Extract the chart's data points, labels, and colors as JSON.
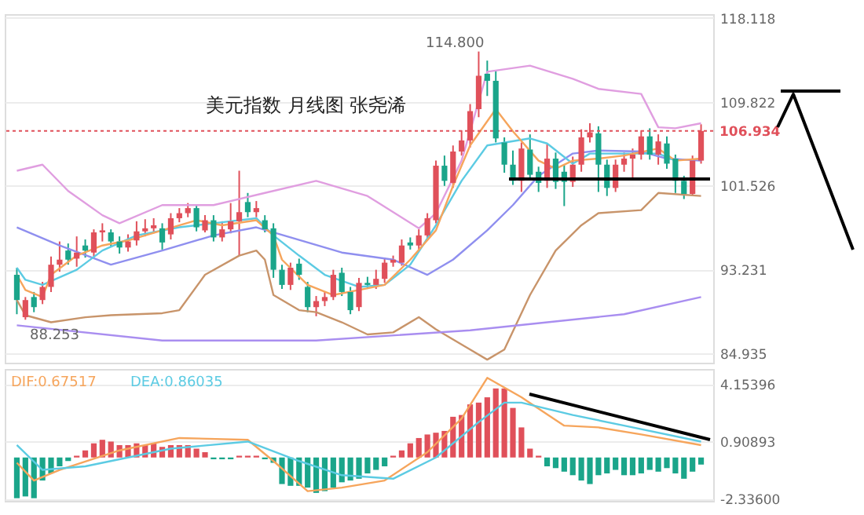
{
  "chart_data": [
    {
      "type": "candlestick",
      "title": "美元指数 月线图 张尧浠",
      "categories": [
        null,
        null,
        null,
        null,
        null,
        null,
        null,
        null,
        null,
        null,
        null,
        null,
        null,
        null,
        null,
        null,
        null,
        null,
        null,
        null,
        null,
        null,
        null,
        null,
        null,
        null,
        null,
        null,
        null,
        null,
        null,
        null,
        null,
        null,
        null,
        null,
        null,
        null,
        null,
        null,
        null,
        null,
        null,
        null,
        null,
        null,
        null,
        null,
        null,
        null,
        null,
        null,
        null,
        null,
        null,
        null,
        null,
        null,
        null,
        null,
        null,
        null,
        null,
        null,
        null,
        null,
        null,
        null,
        null,
        null,
        null,
        null,
        null,
        null,
        null,
        null,
        null,
        null,
        null,
        null,
        null
      ],
      "ohlc": [
        [
          92.7,
          93.4,
          88.8,
          90.2
        ],
        [
          88.5,
          90.5,
          88.253,
          90.2
        ],
        [
          90.5,
          91.0,
          89.0,
          89.5
        ],
        [
          90.2,
          92.0,
          89.8,
          91.5
        ],
        [
          91.5,
          94.5,
          91.0,
          93.7
        ],
        [
          93.7,
          96.0,
          93.0,
          94.2
        ],
        [
          95.1,
          95.8,
          93.7,
          94.2
        ],
        [
          94.3,
          96.5,
          93.5,
          94.9
        ],
        [
          95.6,
          96.2,
          94.4,
          95.1
        ],
        [
          94.9,
          97.2,
          94.5,
          96.9
        ],
        [
          96.9,
          97.8,
          96.0,
          97.1
        ],
        [
          96.9,
          97.2,
          95.5,
          96.0
        ],
        [
          96.0,
          96.5,
          94.8,
          95.4
        ],
        [
          95.4,
          96.7,
          95.0,
          96.0
        ],
        [
          96.1,
          98.0,
          95.6,
          97.0
        ],
        [
          97.0,
          98.2,
          96.5,
          97.3
        ],
        [
          97.3,
          98.3,
          96.8,
          97.6
        ],
        [
          97.3,
          97.8,
          95.2,
          95.9
        ],
        [
          96.7,
          98.8,
          96.2,
          98.3
        ],
        [
          98.3,
          99.3,
          97.9,
          98.8
        ],
        [
          98.8,
          99.8,
          98.4,
          99.3
        ],
        [
          99.3,
          99.6,
          97.0,
          97.4
        ],
        [
          97.1,
          98.6,
          96.9,
          98.1
        ],
        [
          98.1,
          98.6,
          96.0,
          96.4
        ],
        [
          96.4,
          98.0,
          96.0,
          97.2
        ],
        [
          97.2,
          99.8,
          96.8,
          98.0
        ],
        [
          98.0,
          103.0,
          94.6,
          98.9
        ],
        [
          99.9,
          100.8,
          98.4,
          98.9
        ],
        [
          98.9,
          100.0,
          98.4,
          99.3
        ],
        [
          98.1,
          98.6,
          96.9,
          97.2
        ],
        [
          97.3,
          97.8,
          92.4,
          93.2
        ],
        [
          93.2,
          93.7,
          91.3,
          91.7
        ],
        [
          91.7,
          93.9,
          91.2,
          93.4
        ],
        [
          93.8,
          94.3,
          92.2,
          92.7
        ],
        [
          91.5,
          92.0,
          89.0,
          89.5
        ],
        [
          89.5,
          90.6,
          88.6,
          90.1
        ],
        [
          90.1,
          91.0,
          89.6,
          90.5
        ],
        [
          90.5,
          93.2,
          90.2,
          92.7
        ],
        [
          92.9,
          93.4,
          90.6,
          91.0
        ],
        [
          91.0,
          91.5,
          88.8,
          89.2
        ],
        [
          89.5,
          92.4,
          89.1,
          91.9
        ],
        [
          91.9,
          92.5,
          91.3,
          91.7
        ],
        [
          91.7,
          93.2,
          91.3,
          92.3
        ],
        [
          92.3,
          94.4,
          91.9,
          93.9
        ],
        [
          93.9,
          94.6,
          93.5,
          94.2
        ],
        [
          93.9,
          96.2,
          93.6,
          95.6
        ],
        [
          95.9,
          96.4,
          95.2,
          95.6
        ],
        [
          95.6,
          97.2,
          95.2,
          96.6
        ],
        [
          96.6,
          98.8,
          96.2,
          98.3
        ],
        [
          98.1,
          104.0,
          97.8,
          103.5
        ],
        [
          103.5,
          104.5,
          101.5,
          102.0
        ],
        [
          101.8,
          105.5,
          101.3,
          104.9
        ],
        [
          104.9,
          107.0,
          104.5,
          106.0
        ],
        [
          106.0,
          109.6,
          105.3,
          108.9
        ],
        [
          109.1,
          114.8,
          108.3,
          112.4
        ],
        [
          112.6,
          113.9,
          110.4,
          111.9
        ],
        [
          111.9,
          112.9,
          105.8,
          106.2
        ],
        [
          105.8,
          106.3,
          102.8,
          103.6
        ],
        [
          103.6,
          105.0,
          101.6,
          102.0
        ],
        [
          102.0,
          105.8,
          100.9,
          105.2
        ],
        [
          105.1,
          106.6,
          102.1,
          102.6
        ],
        [
          102.9,
          103.4,
          100.9,
          101.8
        ],
        [
          102.0,
          105.6,
          101.3,
          104.2
        ],
        [
          104.2,
          104.8,
          101.2,
          101.9
        ],
        [
          102.9,
          103.6,
          99.5,
          101.9
        ],
        [
          101.9,
          104.4,
          101.4,
          103.6
        ],
        [
          103.6,
          107.1,
          102.9,
          106.3
        ],
        [
          106.3,
          107.7,
          105.8,
          106.8
        ],
        [
          106.7,
          107.4,
          100.9,
          103.6
        ],
        [
          103.6,
          104.1,
          100.5,
          101.3
        ],
        [
          101.3,
          104.1,
          100.9,
          103.6
        ],
        [
          103.6,
          104.8,
          102.9,
          104.2
        ],
        [
          104.2,
          105.2,
          102.3,
          104.6
        ],
        [
          104.6,
          107.0,
          104.1,
          106.4
        ],
        [
          106.4,
          107.2,
          104.1,
          104.6
        ],
        [
          104.6,
          106.6,
          103.6,
          105.9
        ],
        [
          105.7,
          106.4,
          103.2,
          103.7
        ],
        [
          104.2,
          104.6,
          100.8,
          102.0
        ],
        [
          102.0,
          102.5,
          100.2,
          100.7
        ],
        [
          100.7,
          104.5,
          100.5,
          104.0
        ],
        [
          104.0,
          107.6,
          103.7,
          106.934
        ]
      ],
      "colors": [
        "#1aa58a",
        "#e0505a",
        "#1aa58a",
        "#e0505a",
        "#e0505a",
        "#e0505a",
        "#1aa58a",
        "#e0505a",
        "#1aa58a",
        "#e0505a",
        "#e0505a",
        "#1aa58a",
        "#1aa58a",
        "#e0505a",
        "#e0505a",
        "#e0505a",
        "#e0505a",
        "#1aa58a",
        "#e0505a",
        "#e0505a",
        "#e0505a",
        "#1aa58a",
        "#e0505a",
        "#1aa58a",
        "#e0505a",
        "#e0505a",
        "#e0505a",
        "#1aa58a",
        "#e0505a",
        "#1aa58a",
        "#1aa58a",
        "#1aa58a",
        "#e0505a",
        "#1aa58a",
        "#1aa58a",
        "#e0505a",
        "#e0505a",
        "#e0505a",
        "#1aa58a",
        "#1aa58a",
        "#e0505a",
        "#1aa58a",
        "#e0505a",
        "#e0505a",
        "#e0505a",
        "#e0505a",
        "#1aa58a",
        "#e0505a",
        "#e0505a",
        "#e0505a",
        "#1aa58a",
        "#e0505a",
        "#e0505a",
        "#e0505a",
        "#e0505a",
        "#1aa58a",
        "#1aa58a",
        "#1aa58a",
        "#1aa58a",
        "#e0505a",
        "#1aa58a",
        "#1aa58a",
        "#e0505a",
        "#1aa58a",
        "#1aa58a",
        "#e0505a",
        "#e0505a",
        "#e0505a",
        "#1aa58a",
        "#1aa58a",
        "#e0505a",
        "#e0505a",
        "#e0505a",
        "#e0505a",
        "#1aa58a",
        "#e0505a",
        "#1aa58a",
        "#1aa58a",
        "#1aa58a",
        "#e0505a",
        "#e0505a"
      ],
      "series": [
        {
          "type": "line",
          "color": "#e09ee0",
          "values": [
            103.0,
            null,
            null,
            103.6,
            null,
            null,
            101.0,
            null,
            null,
            null,
            98.6,
            null,
            97.8,
            null,
            null,
            null,
            null,
            99.6,
            null,
            null,
            null,
            null,
            null,
            99.6,
            null,
            null,
            null,
            null,
            null,
            100.8,
            null,
            null,
            null,
            null,
            null,
            102.0,
            null,
            null,
            null,
            null,
            null,
            100.5,
            null,
            null,
            null,
            null,
            null,
            97.3,
            null,
            98.8,
            null,
            null,
            104.0,
            null,
            null,
            112.8,
            null,
            null,
            null,
            null,
            113.4,
            null,
            null,
            null,
            null,
            112.1,
            null,
            null,
            111.1,
            null,
            null,
            null,
            null,
            110.6,
            null,
            107.3,
            null,
            107.2,
            null,
            null,
            107.7
          ]
        },
        {
          "type": "line",
          "color": "#8f8fef",
          "values": [
            97.4,
            null,
            null,
            null,
            null,
            95.6,
            null,
            null,
            null,
            null,
            null,
            93.7,
            null,
            null,
            null,
            null,
            null,
            95.1,
            null,
            null,
            null,
            null,
            null,
            96.6,
            null,
            null,
            null,
            null,
            97.4,
            null,
            null,
            null,
            96.4,
            null,
            null,
            null,
            null,
            null,
            94.9,
            null,
            null,
            null,
            null,
            null,
            94.2,
            null,
            null,
            null,
            92.7,
            null,
            null,
            94.2,
            null,
            null,
            null,
            97.1,
            null,
            null,
            99.6,
            null,
            null,
            102.5,
            null,
            null,
            null,
            104.7,
            null,
            null,
            105.0,
            null,
            null,
            null,
            null,
            104.9,
            null,
            null,
            104.2,
            null,
            null,
            null,
            104.0
          ]
        },
        {
          "type": "line",
          "color": "#c8946a",
          "values": [
            90.2,
            88.7,
            null,
            null,
            88.0,
            null,
            null,
            null,
            88.5,
            null,
            null,
            88.7,
            null,
            null,
            null,
            null,
            null,
            88.9,
            null,
            89.2,
            null,
            null,
            92.7,
            null,
            null,
            null,
            94.6,
            null,
            95.1,
            94.2,
            90.7,
            null,
            null,
            89.2,
            null,
            89.0,
            null,
            null,
            88.0,
            null,
            null,
            86.8,
            null,
            null,
            87.0,
            null,
            null,
            88.5,
            null,
            87.3,
            null,
            null,
            null,
            85.3,
            null,
            84.3,
            null,
            85.3,
            null,
            null,
            90.7,
            null,
            null,
            95.1,
            null,
            null,
            97.6,
            null,
            98.8,
            null,
            null,
            null,
            null,
            99.1,
            null,
            100.8,
            null,
            null,
            null,
            null,
            100.5
          ]
        },
        {
          "type": "line",
          "color": "#5ccbe3",
          "values": [
            93.4,
            92.2,
            null,
            91.7,
            null,
            null,
            null,
            93.2,
            null,
            null,
            95.1,
            null,
            null,
            null,
            96.6,
            null,
            null,
            null,
            null,
            97.4,
            null,
            null,
            null,
            97.8,
            null,
            null,
            null,
            null,
            98.3,
            null,
            96.6,
            null,
            null,
            94.6,
            null,
            null,
            92.7,
            null,
            null,
            null,
            91.5,
            null,
            null,
            91.7,
            null,
            null,
            93.7,
            null,
            null,
            97.6,
            null,
            null,
            102.0,
            null,
            null,
            105.5,
            null,
            null,
            null,
            null,
            106.2,
            null,
            105.7,
            null,
            null,
            103.7,
            null,
            104.7,
            null,
            null,
            null,
            104.7,
            null,
            null,
            null,
            104.7,
            null,
            104.0,
            null,
            null,
            null
          ]
        },
        {
          "type": "line",
          "color": "#f6a55c",
          "values": [
            92.7,
            91.2,
            null,
            90.5,
            92.7,
            null,
            null,
            94.6,
            null,
            null,
            95.6,
            null,
            null,
            96.1,
            null,
            null,
            null,
            97.1,
            null,
            null,
            null,
            98.1,
            null,
            null,
            97.6,
            null,
            null,
            null,
            98.1,
            null,
            96.6,
            94.2,
            null,
            null,
            91.7,
            null,
            null,
            90.7,
            null,
            null,
            91.2,
            null,
            null,
            91.7,
            null,
            null,
            94.2,
            null,
            null,
            97.1,
            null,
            101.5,
            null,
            105.5,
            null,
            null,
            109.1,
            null,
            106.9,
            null,
            null,
            104.0,
            null,
            103.2,
            null,
            104.0,
            null,
            null,
            104.2,
            null,
            null,
            104.5,
            null,
            null,
            null,
            105.2,
            null,
            104.0,
            null,
            null,
            104.2
          ]
        },
        {
          "type": "line",
          "color": "#a98ef0",
          "values": [
            87.7,
            null,
            null,
            null,
            null,
            null,
            null,
            null,
            null,
            null,
            null,
            null,
            null,
            null,
            null,
            null,
            null,
            86.2,
            null,
            null,
            null,
            null,
            null,
            null,
            null,
            null,
            null,
            null,
            null,
            null,
            null,
            null,
            null,
            null,
            null,
            86.2,
            null,
            null,
            null,
            null,
            null,
            null,
            null,
            null,
            null,
            null,
            null,
            null,
            null,
            null,
            null,
            null,
            null,
            87.2,
            null,
            null,
            null,
            null,
            null,
            null,
            null,
            null,
            null,
            null,
            null,
            null,
            null,
            null,
            null,
            null,
            null,
            88.8,
            null,
            null,
            null,
            null,
            null,
            null,
            null,
            null,
            90.5
          ]
        }
      ],
      "ylim": [
        84.0,
        118.5
      ],
      "yticks": [
        84.935,
        93.231,
        101.526,
        109.822,
        118.118
      ],
      "ref_lines": [
        {
          "axis": "y",
          "value": 106.934,
          "label": "106.934",
          "color": "#e0505a",
          "line_style": "dotted"
        }
      ],
      "annotations": [
        "114.800",
        "88.253"
      ],
      "grid": "y",
      "tick_labels": "y"
    },
    {
      "type": "bar",
      "categories": [
        null,
        null,
        null,
        null,
        null,
        null,
        null,
        null,
        null,
        null,
        null,
        null,
        null,
        null,
        null,
        null,
        null,
        null,
        null,
        null,
        null,
        null,
        null,
        null,
        null,
        null,
        null,
        null,
        null,
        null,
        null,
        null,
        null,
        null,
        null,
        null,
        null,
        null,
        null,
        null,
        null,
        null,
        null,
        null,
        null,
        null,
        null,
        null,
        null,
        null,
        null,
        null,
        null,
        null,
        null,
        null,
        null,
        null,
        null,
        null,
        null,
        null,
        null,
        null,
        null,
        null,
        null,
        null,
        null,
        null,
        null,
        null,
        null,
        null,
        null,
        null,
        null,
        null,
        null,
        null,
        null
      ],
      "series": [
        {
          "type": "bar",
          "values": [
            -2.3,
            -2.2,
            -2.3,
            -1.3,
            -0.9,
            -0.5,
            -0.2,
            0.1,
            0.4,
            0.8,
            1.0,
            0.9,
            0.7,
            0.7,
            0.8,
            0.7,
            0.8,
            0.6,
            0.7,
            0.7,
            0.7,
            0.5,
            0.3,
            -0.1,
            -0.1,
            -0.1,
            0.1,
            0.1,
            0.1,
            -0.1,
            -0.3,
            -1.5,
            -1.6,
            -1.6,
            -1.7,
            -2.0,
            -1.9,
            -1.7,
            -1.4,
            -1.3,
            -1.2,
            -0.9,
            -0.7,
            -0.5,
            0.1,
            0.4,
            0.8,
            1.1,
            1.3,
            1.4,
            1.5,
            2.3,
            2.4,
            3.0,
            3.1,
            3.4,
            3.9,
            3.9,
            2.8,
            1.7,
            0.5,
            0.1,
            -0.5,
            -0.6,
            -0.8,
            -1.0,
            -1.3,
            -1.5,
            -1.0,
            -0.9,
            -0.7,
            -1.0,
            -1.0,
            -0.9,
            -0.7,
            -0.8,
            -0.6,
            -0.9,
            -1.2,
            -0.8,
            -0.4
          ],
          "colors": [
            "#1aa58a",
            "#1aa58a",
            "#1aa58a",
            "#1aa58a",
            "#1aa58a",
            "#1aa58a",
            "#1aa58a",
            "#e0505a",
            "#e0505a",
            "#e0505a",
            "#e0505a",
            "#e0505a",
            "#e0505a",
            "#e0505a",
            "#e0505a",
            "#e0505a",
            "#e0505a",
            "#e0505a",
            "#e0505a",
            "#e0505a",
            "#e0505a",
            "#e0505a",
            "#e0505a",
            "#1aa58a",
            "#1aa58a",
            "#1aa58a",
            "#e0505a",
            "#e0505a",
            "#e0505a",
            "#1aa58a",
            "#1aa58a",
            "#1aa58a",
            "#1aa58a",
            "#1aa58a",
            "#1aa58a",
            "#1aa58a",
            "#1aa58a",
            "#1aa58a",
            "#1aa58a",
            "#1aa58a",
            "#1aa58a",
            "#1aa58a",
            "#1aa58a",
            "#1aa58a",
            "#e0505a",
            "#e0505a",
            "#e0505a",
            "#e0505a",
            "#e0505a",
            "#e0505a",
            "#e0505a",
            "#e0505a",
            "#e0505a",
            "#e0505a",
            "#e0505a",
            "#e0505a",
            "#e0505a",
            "#e0505a",
            "#e0505a",
            "#e0505a",
            "#e0505a",
            "#e0505a",
            "#1aa58a",
            "#1aa58a",
            "#1aa58a",
            "#1aa58a",
            "#1aa58a",
            "#1aa58a",
            "#1aa58a",
            "#1aa58a",
            "#1aa58a",
            "#1aa58a",
            "#1aa58a",
            "#1aa58a",
            "#1aa58a",
            "#1aa58a",
            "#1aa58a",
            "#1aa58a",
            "#1aa58a",
            "#1aa58a",
            "#1aa58a"
          ]
        },
        {
          "type": "line",
          "name": "DIF:0.67517",
          "color": "#f6a55c",
          "values": [
            -0.3,
            null,
            -1.3,
            null,
            null,
            -0.7,
            null,
            null,
            null,
            null,
            null,
            null,
            0.4,
            null,
            null,
            null,
            null,
            null,
            null,
            1.1,
            null,
            null,
            null,
            null,
            null,
            null,
            null,
            1.0,
            null,
            null,
            -0.2,
            null,
            null,
            null,
            -1.9,
            null,
            null,
            null,
            -1.7,
            null,
            null,
            null,
            null,
            -1.3,
            null,
            null,
            null,
            null,
            0.3,
            null,
            null,
            null,
            2.2,
            null,
            null,
            4.5,
            null,
            null,
            null,
            3.4,
            null,
            null,
            null,
            null,
            1.8,
            null,
            null,
            null,
            1.7,
            null,
            null,
            null,
            null,
            1.3,
            null,
            null,
            null,
            null,
            null,
            null,
            0.7
          ]
        },
        {
          "type": "line",
          "name": "DEA:0.86035",
          "color": "#5ccbe3",
          "values": [
            0.7,
            null,
            null,
            -0.7,
            null,
            null,
            null,
            null,
            -0.5,
            null,
            null,
            null,
            null,
            null,
            null,
            null,
            null,
            null,
            0.5,
            null,
            null,
            null,
            null,
            null,
            null,
            null,
            null,
            0.9,
            null,
            null,
            null,
            null,
            null,
            -0.2,
            null,
            null,
            null,
            null,
            -1.0,
            null,
            null,
            null,
            null,
            null,
            -1.2,
            null,
            null,
            null,
            null,
            0.0,
            null,
            null,
            null,
            null,
            2.0,
            null,
            null,
            3.1,
            null,
            3.1,
            null,
            null,
            null,
            null,
            null,
            2.4,
            null,
            null,
            null,
            null,
            null,
            1.8,
            null,
            null,
            null,
            null,
            null,
            null,
            null,
            null,
            0.9
          ]
        }
      ],
      "ylim": [
        -2.45,
        5.0
      ],
      "yticks": [
        {
          "value": -2.336,
          "label": "-2.33600"
        },
        0.90893,
        4.15396
      ],
      "grid": "y",
      "tick_labels": "y"
    }
  ]
}
